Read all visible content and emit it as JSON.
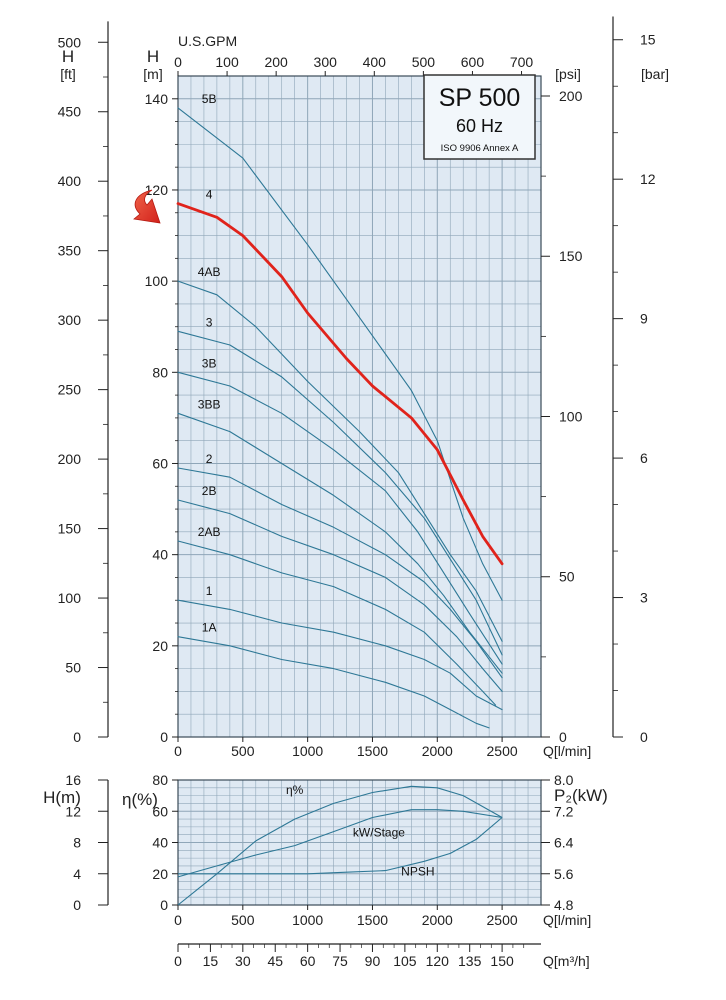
{
  "chart_data": [
    {
      "type": "line",
      "chart": "head-curves",
      "title": "SP 500",
      "subtitle": "60 Hz",
      "standard": "ISO 9906 Annex A",
      "x_label": "Q[l/min]",
      "x_range": [
        0,
        2800
      ],
      "x_ticks": [
        0,
        500,
        1000,
        1500,
        2000,
        2500
      ],
      "top_axis": {
        "label": "U.S.GPM",
        "ticks": [
          "0",
          "100",
          "200",
          "300",
          "400",
          "500",
          "600",
          "700"
        ]
      },
      "left_m_axis": {
        "label": "H",
        "unit": "[m]",
        "range": [
          0,
          145
        ],
        "ticks": [
          "0",
          "20",
          "40",
          "60",
          "80",
          "100",
          "120",
          "140"
        ]
      },
      "left_ft_axis": {
        "label": "H",
        "unit": "[ft]",
        "ticks": [
          "0",
          "50",
          "100",
          "150",
          "200",
          "250",
          "300",
          "350",
          "400",
          "450",
          "500"
        ]
      },
      "right_psi_axis": {
        "unit": "[psi]",
        "ticks": [
          "0",
          "50",
          "100",
          "150",
          "200"
        ]
      },
      "right_bar_axis": {
        "unit": "[bar]",
        "ticks": [
          "0",
          "3",
          "6",
          "9",
          "12",
          "15"
        ]
      },
      "highlight_color": "#e0231b",
      "curve_color": "#2e7896",
      "grid_color": "#8fa6b8",
      "background_color": "#dfe9f3",
      "highlighted_curve": "4",
      "series": [
        {
          "name": "5B",
          "points": [
            [
              0,
              138
            ],
            [
              500,
              127
            ],
            [
              1000,
              108
            ],
            [
              1500,
              88
            ],
            [
              1800,
              76
            ],
            [
              2000,
              65
            ],
            [
              2200,
              48
            ],
            [
              2350,
              38
            ],
            [
              2500,
              30
            ]
          ]
        },
        {
          "name": "4",
          "points": [
            [
              0,
              117
            ],
            [
              300,
              114
            ],
            [
              500,
              110
            ],
            [
              800,
              101
            ],
            [
              1000,
              93
            ],
            [
              1300,
              83
            ],
            [
              1500,
              77
            ],
            [
              1800,
              70
            ],
            [
              2000,
              63
            ],
            [
              2200,
              52
            ],
            [
              2350,
              44
            ],
            [
              2500,
              38
            ]
          ]
        },
        {
          "name": "4AB",
          "points": [
            [
              0,
              100
            ],
            [
              300,
              97
            ],
            [
              600,
              90
            ],
            [
              1000,
              78
            ],
            [
              1400,
              67
            ],
            [
              1700,
              58
            ],
            [
              1900,
              49
            ],
            [
              2100,
              40
            ],
            [
              2300,
              32
            ],
            [
              2500,
              21
            ]
          ]
        },
        {
          "name": "3",
          "points": [
            [
              0,
              89
            ],
            [
              400,
              86
            ],
            [
              800,
              79
            ],
            [
              1200,
              69
            ],
            [
              1600,
              58
            ],
            [
              1900,
              48
            ],
            [
              2100,
              39
            ],
            [
              2300,
              30
            ],
            [
              2500,
              18
            ]
          ]
        },
        {
          "name": "3B",
          "points": [
            [
              0,
              80
            ],
            [
              400,
              77
            ],
            [
              800,
              71
            ],
            [
              1200,
              63
            ],
            [
              1600,
              54
            ],
            [
              1850,
              45
            ],
            [
              2050,
              36
            ],
            [
              2250,
              27
            ],
            [
              2500,
              16
            ]
          ]
        },
        {
          "name": "3BB",
          "points": [
            [
              0,
              71
            ],
            [
              400,
              67
            ],
            [
              800,
              60
            ],
            [
              1200,
              53
            ],
            [
              1600,
              45
            ],
            [
              1850,
              38
            ],
            [
              2050,
              31
            ],
            [
              2250,
              23
            ],
            [
              2500,
              14
            ]
          ]
        },
        {
          "name": "2",
          "points": [
            [
              0,
              59
            ],
            [
              400,
              57
            ],
            [
              800,
              51
            ],
            [
              1200,
              46
            ],
            [
              1600,
              40
            ],
            [
              1900,
              34
            ],
            [
              2100,
              28
            ],
            [
              2300,
              21
            ],
            [
              2500,
              13
            ]
          ]
        },
        {
          "name": "2B",
          "points": [
            [
              0,
              52
            ],
            [
              400,
              49
            ],
            [
              800,
              44
            ],
            [
              1200,
              40
            ],
            [
              1600,
              35
            ],
            [
              1900,
              29
            ],
            [
              2150,
              22
            ],
            [
              2350,
              15
            ],
            [
              2500,
              10
            ]
          ]
        },
        {
          "name": "2AB",
          "points": [
            [
              0,
              43
            ],
            [
              400,
              40
            ],
            [
              800,
              36
            ],
            [
              1200,
              33
            ],
            [
              1600,
              28
            ],
            [
              1900,
              23
            ],
            [
              2150,
              16
            ],
            [
              2350,
              10
            ],
            [
              2450,
              7
            ]
          ]
        },
        {
          "name": "1",
          "points": [
            [
              0,
              30
            ],
            [
              400,
              28
            ],
            [
              800,
              25
            ],
            [
              1200,
              23
            ],
            [
              1600,
              20
            ],
            [
              1900,
              17
            ],
            [
              2100,
              14
            ],
            [
              2300,
              9
            ],
            [
              2500,
              6
            ]
          ]
        },
        {
          "name": "1A",
          "points": [
            [
              0,
              22
            ],
            [
              400,
              20
            ],
            [
              800,
              17
            ],
            [
              1200,
              15
            ],
            [
              1600,
              12
            ],
            [
              1900,
              9
            ],
            [
              2100,
              6
            ],
            [
              2300,
              3
            ],
            [
              2400,
              2
            ]
          ]
        }
      ],
      "arrow_target": {
        "x": 0,
        "y": 117
      }
    },
    {
      "type": "line",
      "chart": "efficiency-power-npsh",
      "x_label": "Q[l/min]",
      "x_range": [
        0,
        2800
      ],
      "x_ticks": [
        0,
        500,
        1000,
        1500,
        2000,
        2500
      ],
      "eta_axis": {
        "label": "η(%)",
        "range": [
          0,
          80
        ],
        "ticks": [
          "0",
          "20",
          "40",
          "60",
          "80"
        ]
      },
      "h_axis": {
        "label": "H(m)",
        "ticks": [
          "0",
          "4",
          "8",
          "12",
          "16"
        ]
      },
      "p2_axis": {
        "label": "P₂(kW)",
        "ticks": [
          "4.8",
          "5.6",
          "6.4",
          "7.2",
          "8.0"
        ]
      },
      "flow_m3h_axis": {
        "label": "Q[m³/h]",
        "range": [
          0,
          168
        ],
        "ticks": [
          "0",
          "15",
          "30",
          "45",
          "60",
          "75",
          "90",
          "105",
          "120",
          "135",
          "150"
        ]
      },
      "series": [
        {
          "name": "η%",
          "label_at": [
            900,
            71
          ],
          "points": [
            [
              0,
              0
            ],
            [
              300,
              20
            ],
            [
              600,
              41
            ],
            [
              900,
              55
            ],
            [
              1200,
              65
            ],
            [
              1500,
              72
            ],
            [
              1800,
              76
            ],
            [
              2000,
              75
            ],
            [
              2200,
              70
            ],
            [
              2500,
              56
            ]
          ]
        },
        {
          "name": "kW/Stage",
          "label_at": [
            1550,
            44
          ],
          "points": [
            [
              0,
              18
            ],
            [
              300,
              25
            ],
            [
              600,
              32
            ],
            [
              900,
              38
            ],
            [
              1200,
              47
            ],
            [
              1500,
              56
            ],
            [
              1800,
              61
            ],
            [
              2000,
              61
            ],
            [
              2200,
              60
            ],
            [
              2500,
              56
            ]
          ]
        },
        {
          "name": "NPSH",
          "label_at": [
            1850,
            19
          ],
          "points": [
            [
              0,
              20
            ],
            [
              300,
              20
            ],
            [
              600,
              20
            ],
            [
              1000,
              20
            ],
            [
              1300,
              21
            ],
            [
              1600,
              22
            ],
            [
              1900,
              28
            ],
            [
              2100,
              33
            ],
            [
              2300,
              42
            ],
            [
              2500,
              56
            ]
          ]
        }
      ]
    }
  ]
}
